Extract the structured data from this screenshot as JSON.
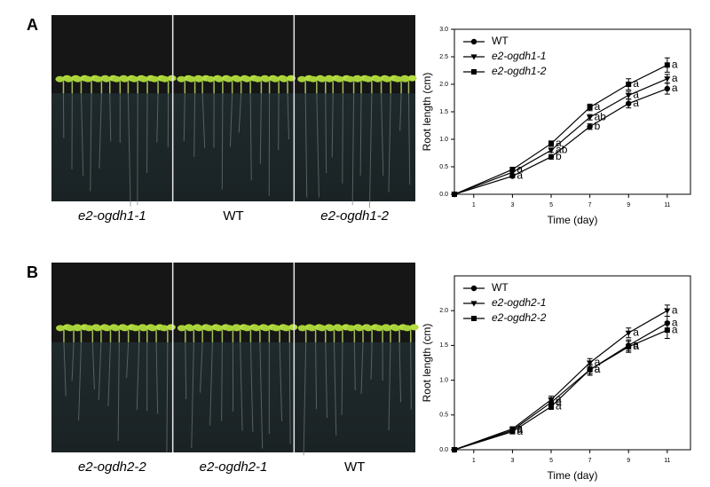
{
  "panels": [
    {
      "label": "A",
      "photo_labels": [
        "e2-ogdh1-1",
        "WT",
        "e2-ogdh1-2"
      ]
    },
    {
      "label": "B",
      "photo_labels": [
        "e2-ogdh2-2",
        "e2-ogdh2-1",
        "WT"
      ]
    }
  ],
  "chart_data": [
    {
      "type": "line",
      "x_label": "Time (day)",
      "y_label": "Root length (cm)",
      "x": [
        0,
        3,
        5,
        7,
        9,
        11
      ],
      "xlim": [
        0,
        12.2
      ],
      "xticks": [
        1,
        3,
        5,
        7,
        9,
        11
      ],
      "ylim": [
        0,
        3
      ],
      "yticks": [
        {
          "value": 0,
          "label": "0.0"
        },
        {
          "value": 0.5,
          "label": "0.5"
        },
        {
          "value": 1,
          "label": "1.0"
        },
        {
          "value": 1.5,
          "label": "1.5"
        },
        {
          "value": 2,
          "label": "2.0"
        },
        {
          "value": 2.5,
          "label": "2.5"
        },
        {
          "value": 3,
          "label": "3.0"
        }
      ],
      "legend": "upper left",
      "series": [
        {
          "name": "WT",
          "color": "#000000",
          "marker": "circle",
          "style": "normal",
          "values": [
            0,
            0.33,
            0.68,
            1.23,
            1.65,
            1.92
          ],
          "errors": [
            0,
            0.03,
            0.04,
            0.05,
            0.08,
            0.1
          ],
          "letters": [
            null,
            "a",
            "b",
            "b",
            "a",
            "a"
          ]
        },
        {
          "name": "e2-ogdh1-1",
          "color": "#000000",
          "marker": "triangle-down",
          "style": "italic",
          "values": [
            0,
            0.4,
            0.8,
            1.4,
            1.8,
            2.1
          ],
          "errors": [
            0,
            0.03,
            0.04,
            0.05,
            0.07,
            0.08
          ],
          "letters": [
            null,
            null,
            "ab",
            "ab",
            "a",
            "a"
          ]
        },
        {
          "name": "e2-ogdh1-2",
          "color": "#000000",
          "marker": "square",
          "style": "italic",
          "values": [
            0,
            0.45,
            0.92,
            1.58,
            2.0,
            2.35
          ],
          "errors": [
            0,
            0.04,
            0.05,
            0.06,
            0.1,
            0.13
          ],
          "letters": [
            null,
            "a",
            "a",
            "a",
            "a",
            "a"
          ]
        }
      ]
    },
    {
      "type": "line",
      "x_label": "Time (day)",
      "y_label": "Root length (cm)",
      "x": [
        0,
        3,
        5,
        7,
        9,
        11
      ],
      "xlim": [
        0,
        12.2
      ],
      "xticks": [
        1,
        3,
        5,
        7,
        9,
        11
      ],
      "ylim": [
        0,
        2.5
      ],
      "yticks": [
        {
          "value": 0,
          "label": "0.0"
        },
        {
          "value": 0.5,
          "label": "0.5"
        },
        {
          "value": 1,
          "label": "1.0"
        },
        {
          "value": 1.5,
          "label": "1.5"
        },
        {
          "value": 2,
          "label": "2.0"
        }
      ],
      "legend": "upper left",
      "series": [
        {
          "name": "WT",
          "color": "#000000",
          "marker": "circle",
          "style": "normal",
          "values": [
            0,
            0.28,
            0.68,
            1.15,
            1.5,
            1.82
          ],
          "errors": [
            0,
            0.03,
            0.05,
            0.06,
            0.08,
            0.1
          ],
          "letters": [
            null,
            "a",
            "a",
            "a",
            "a",
            "a"
          ]
        },
        {
          "name": "e2-ogdh2-1",
          "color": "#000000",
          "marker": "triangle-down",
          "style": "italic",
          "values": [
            0,
            0.3,
            0.72,
            1.25,
            1.68,
            2.0
          ],
          "errors": [
            0,
            0.03,
            0.05,
            0.06,
            0.07,
            0.08
          ],
          "letters": [
            null,
            "a",
            "a",
            "a",
            "a",
            "a"
          ]
        },
        {
          "name": "e2-ogdh2-2",
          "color": "#000000",
          "marker": "square",
          "style": "italic",
          "values": [
            0,
            0.26,
            0.62,
            1.15,
            1.48,
            1.72
          ],
          "errors": [
            0,
            0.03,
            0.04,
            0.08,
            0.08,
            0.12
          ],
          "letters": [
            null,
            "a",
            "a",
            "a",
            "a",
            "a"
          ]
        }
      ]
    }
  ]
}
